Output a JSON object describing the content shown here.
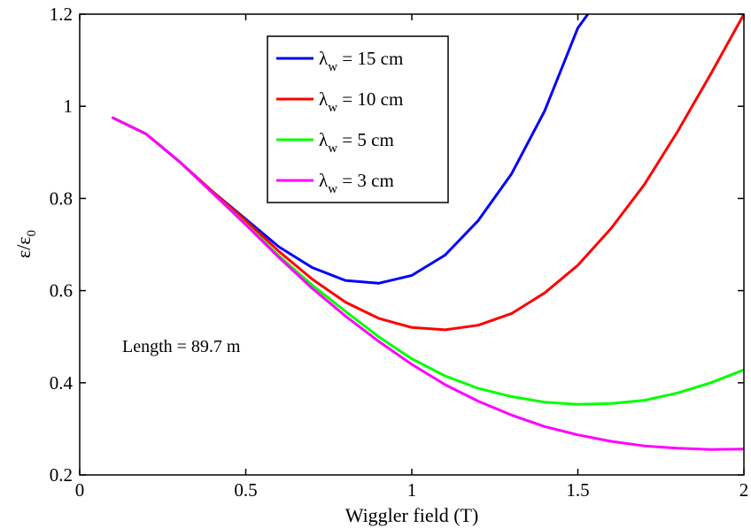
{
  "chart_data": {
    "type": "line",
    "title": "",
    "xlabel": "Wiggler field (T)",
    "ylabel": {
      "main": "ε/ε",
      "sub": "0"
    },
    "xlim": [
      0,
      2
    ],
    "ylim": [
      0.2,
      1.2
    ],
    "xticks": [
      0,
      0.5,
      1,
      1.5,
      2
    ],
    "xtick_labels": [
      "0",
      "0.5",
      "1",
      "1.5",
      "2"
    ],
    "yticks": [
      0.2,
      0.4,
      0.6,
      0.8,
      1.0,
      1.2
    ],
    "ytick_labels": [
      "0.2",
      "0.4",
      "0.6",
      "0.8",
      "1",
      "1.2"
    ],
    "grid": false,
    "legend_position": "top-center",
    "annotation": "Length = 89.7 m",
    "series": [
      {
        "name": "λ_w = 15 cm",
        "legend": {
          "symbol": "λ",
          "sub": "w",
          "rest": "= 15 cm"
        },
        "color": "#0000FF",
        "x": [
          0.1,
          0.2,
          0.3,
          0.4,
          0.5,
          0.6,
          0.7,
          0.8,
          0.9,
          1.0,
          1.1,
          1.2,
          1.3,
          1.4,
          1.5,
          1.53
        ],
        "y": [
          0.975,
          0.94,
          0.88,
          0.815,
          0.755,
          0.695,
          0.65,
          0.622,
          0.616,
          0.633,
          0.677,
          0.752,
          0.853,
          0.99,
          1.17,
          1.2
        ]
      },
      {
        "name": "λ_w = 10 cm",
        "legend": {
          "symbol": "λ",
          "sub": "w",
          "rest": "= 10 cm"
        },
        "color": "#FF0000",
        "x": [
          0.1,
          0.2,
          0.3,
          0.4,
          0.5,
          0.6,
          0.7,
          0.8,
          0.9,
          1.0,
          1.1,
          1.2,
          1.3,
          1.4,
          1.5,
          1.6,
          1.7,
          1.8,
          1.9,
          2.0
        ],
        "y": [
          0.975,
          0.94,
          0.88,
          0.815,
          0.752,
          0.685,
          0.625,
          0.575,
          0.54,
          0.52,
          0.515,
          0.525,
          0.55,
          0.595,
          0.655,
          0.735,
          0.83,
          0.945,
          1.07,
          1.2
        ]
      },
      {
        "name": "λ_w = 5 cm",
        "legend": {
          "symbol": "λ",
          "sub": "w",
          "rest": "=  5 cm"
        },
        "color": "#00FF00",
        "x": [
          0.1,
          0.2,
          0.3,
          0.4,
          0.5,
          0.6,
          0.7,
          0.8,
          0.9,
          1.0,
          1.1,
          1.2,
          1.3,
          1.4,
          1.5,
          1.6,
          1.7,
          1.8,
          1.9,
          2.0
        ],
        "y": [
          0.975,
          0.94,
          0.88,
          0.812,
          0.745,
          0.675,
          0.612,
          0.555,
          0.5,
          0.452,
          0.415,
          0.388,
          0.37,
          0.358,
          0.353,
          0.355,
          0.362,
          0.378,
          0.4,
          0.428
        ]
      },
      {
        "name": "λ_w = 3 cm",
        "legend": {
          "symbol": "λ",
          "sub": "w",
          "rest": "= 3 cm"
        },
        "color": "#FF00FF",
        "x": [
          0.1,
          0.2,
          0.3,
          0.4,
          0.5,
          0.6,
          0.7,
          0.8,
          0.9,
          1.0,
          1.1,
          1.2,
          1.3,
          1.4,
          1.5,
          1.6,
          1.7,
          1.8,
          1.9,
          2.0
        ],
        "y": [
          0.975,
          0.94,
          0.88,
          0.812,
          0.743,
          0.672,
          0.605,
          0.545,
          0.49,
          0.44,
          0.396,
          0.36,
          0.33,
          0.305,
          0.287,
          0.273,
          0.263,
          0.258,
          0.255,
          0.256
        ]
      }
    ]
  }
}
